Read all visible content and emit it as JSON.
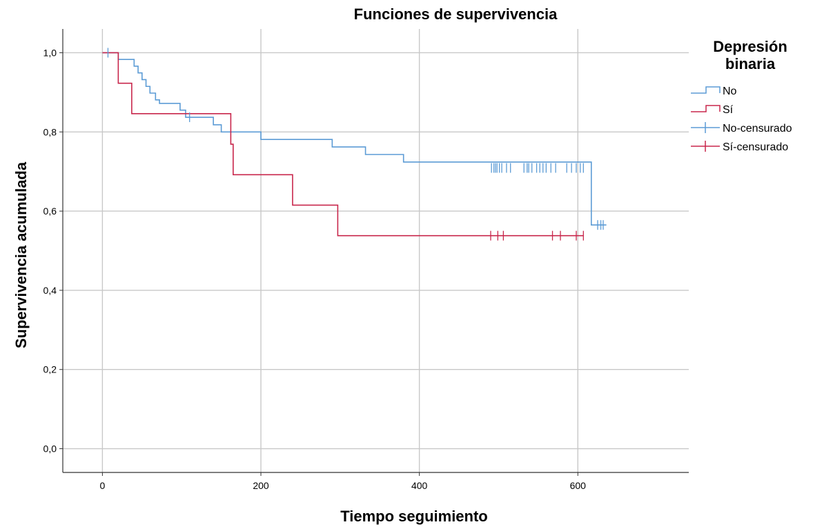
{
  "chart_data": {
    "type": "line",
    "title": "Funciones de supervivencia",
    "xlabel": "Tiempo seguimiento",
    "ylabel": "Supervivencia acumulada",
    "xlim": [
      -50,
      740
    ],
    "ylim": [
      -0.06,
      1.06
    ],
    "x_ticks": [
      0,
      200,
      400,
      600
    ],
    "x_tick_labels": [
      "0",
      "200",
      "400",
      "600"
    ],
    "y_ticks": [
      0.0,
      0.2,
      0.4,
      0.6,
      0.8,
      1.0
    ],
    "y_tick_labels": [
      "0,0",
      "0,2",
      "0,4",
      "0,6",
      "0,8",
      "1,0"
    ],
    "grid": true,
    "step": true,
    "legend": {
      "title": "Depresión binaria",
      "placement": "right",
      "entries": [
        "No",
        "Sí",
        "No-censurado",
        "Sí-censurado"
      ]
    },
    "series": [
      {
        "name": "No",
        "color": "#5b9bd5",
        "x": [
          0,
          20,
          40,
          45,
          50,
          55,
          60,
          67,
          72,
          98,
          105,
          140,
          150,
          200,
          290,
          332,
          380,
          617,
          636
        ],
        "y": [
          1.0,
          0.983,
          0.966,
          0.949,
          0.932,
          0.915,
          0.898,
          0.881,
          0.872,
          0.855,
          0.837,
          0.818,
          0.8,
          0.781,
          0.762,
          0.743,
          0.724,
          0.565,
          0.565
        ]
      },
      {
        "name": "Sí",
        "color": "#c8264b",
        "x": [
          0,
          20,
          37,
          160,
          162,
          165,
          240,
          297,
          607
        ],
        "y": [
          1.0,
          0.923,
          0.846,
          0.846,
          0.769,
          0.692,
          0.615,
          0.538,
          0.538
        ]
      }
    ],
    "censored": [
      {
        "name": "No-censurado",
        "color": "#5b9bd5",
        "x": [
          7,
          110,
          491,
          494,
          496,
          498,
          501,
          504,
          510,
          515,
          532,
          536,
          538,
          542,
          548,
          552,
          556,
          560,
          566,
          572,
          586,
          592,
          598,
          603,
          607,
          625,
          629,
          632
        ],
        "y": [
          1.0,
          0.837,
          0.709,
          0.709,
          0.709,
          0.709,
          0.709,
          0.709,
          0.709,
          0.709,
          0.709,
          0.709,
          0.709,
          0.709,
          0.709,
          0.709,
          0.709,
          0.709,
          0.709,
          0.709,
          0.709,
          0.709,
          0.709,
          0.709,
          0.709,
          0.565,
          0.565,
          0.565
        ]
      },
      {
        "name": "Sí-censurado",
        "color": "#c8264b",
        "x": [
          490,
          499,
          506,
          568,
          578,
          598,
          607
        ],
        "y": [
          0.538,
          0.538,
          0.538,
          0.538,
          0.538,
          0.538,
          0.538
        ]
      }
    ]
  }
}
